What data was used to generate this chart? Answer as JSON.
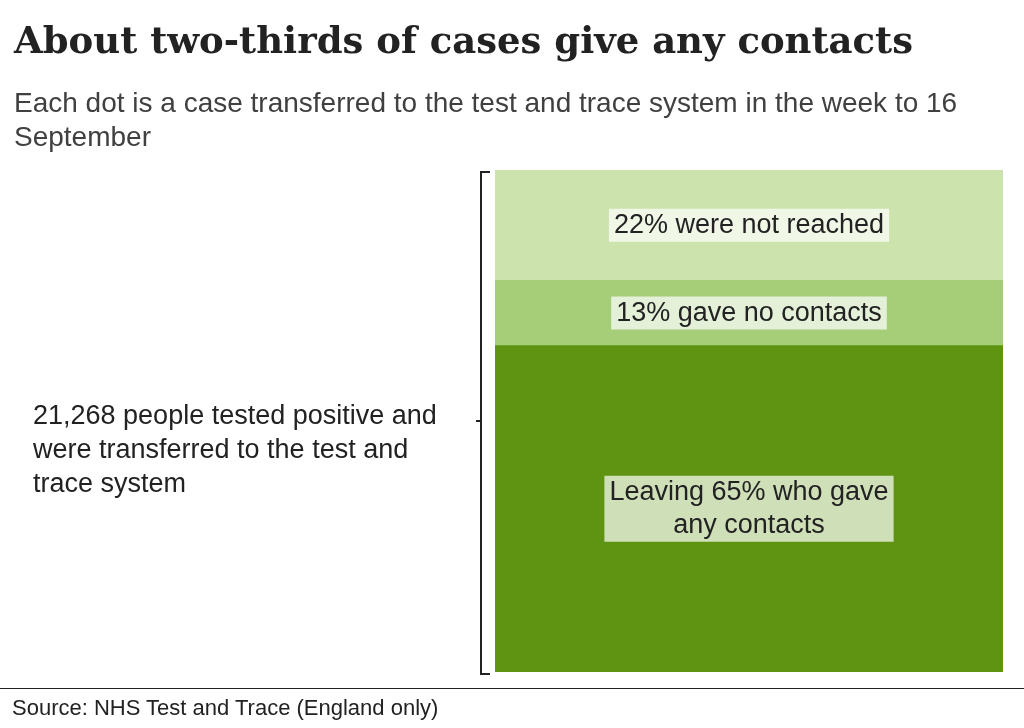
{
  "chart_data": {
    "type": "bar",
    "stacked": true,
    "title": "About two-thirds of cases give any contacts",
    "subtitle": "Each dot is a case transferred to the test and trace system in the week to 16 September",
    "categories": [
      null
    ],
    "series": [
      {
        "color": "#5e9412",
        "values": [
          65
        ],
        "value_labels": [
          "Leaving 65% who gave any contacts"
        ]
      },
      {
        "color": "#a6cd78",
        "values": [
          13
        ],
        "value_labels": [
          "13% gave no contacts"
        ]
      },
      {
        "color": "#cce3ad",
        "values": [
          22
        ],
        "value_labels": [
          "22% were not reached"
        ]
      }
    ],
    "annotations": [
      "21,268 people tested positive and were transferred to the test and trace system",
      "Source: NHS Test and Trace (England only)"
    ],
    "legend": false
  }
}
